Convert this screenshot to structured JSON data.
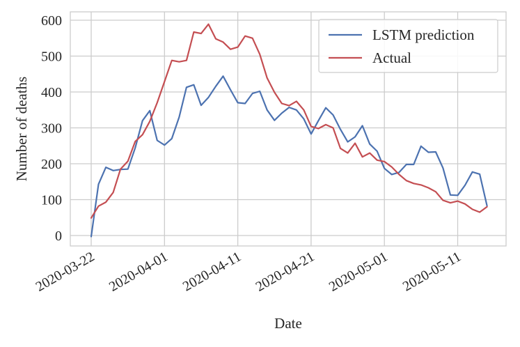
{
  "chart_data": {
    "type": "line",
    "title": "",
    "xlabel": "Date",
    "ylabel": "Number of deaths",
    "x_tick_labels": [
      "2020-03-22",
      "2020-04-01",
      "2020-04-11",
      "2020-04-21",
      "2020-05-01",
      "2020-05-11"
    ],
    "y_tick_labels": [
      "0",
      "100",
      "200",
      "300",
      "400",
      "500",
      "600"
    ],
    "ylim": [
      -30,
      620
    ],
    "xlim": [
      "2020-03-22",
      "2020-05-17"
    ],
    "grid": true,
    "legend_position": "top-right",
    "x_start_date": "2020-03-22",
    "series": [
      {
        "name": "LSTM prediction",
        "color": "#4c72b0",
        "values": [
          -3,
          143,
          190,
          181,
          184,
          185,
          244,
          320,
          348,
          265,
          252,
          270,
          330,
          413,
          420,
          363,
          385,
          416,
          444,
          406,
          370,
          368,
          396,
          402,
          350,
          321,
          341,
          357,
          350,
          325,
          283,
          320,
          356,
          336,
          296,
          261,
          275,
          306,
          255,
          235,
          187,
          170,
          176,
          198,
          198,
          249,
          232,
          233,
          188,
          113,
          112,
          140,
          177,
          171,
          83
        ]
      },
      {
        "name": "Actual",
        "color": "#c44e52",
        "values": [
          49,
          82,
          93,
          120,
          185,
          207,
          262,
          281,
          318,
          370,
          429,
          488,
          484,
          488,
          567,
          563,
          589,
          548,
          539,
          519,
          525,
          556,
          550,
          505,
          439,
          399,
          368,
          362,
          374,
          350,
          304,
          298,
          309,
          300,
          243,
          230,
          257,
          219,
          230,
          210,
          206,
          191,
          170,
          153,
          145,
          141,
          133,
          122,
          98,
          91,
          96,
          88,
          73,
          65,
          80
        ]
      }
    ]
  }
}
